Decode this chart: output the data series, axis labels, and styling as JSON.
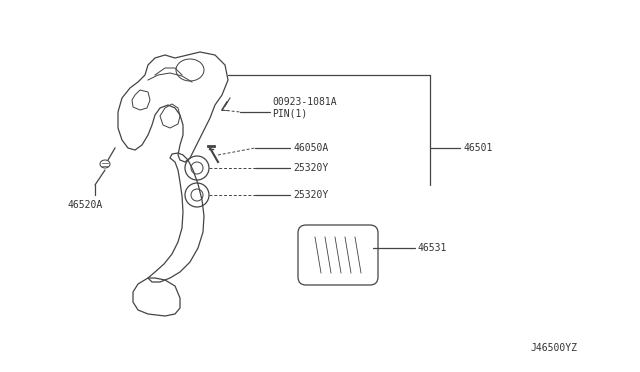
{
  "background_color": "#ffffff",
  "line_color": "#444444",
  "text_color": "#333333",
  "labels": {
    "46501": "46501",
    "00923_1081A": "00923-1081A\nPIN(1)",
    "46050A": "46050A",
    "25320Y_1": "25320Y",
    "25320Y_2": "25320Y",
    "46520A": "46520A",
    "46531": "46531",
    "J46500YZ": "J46500YZ"
  },
  "font_size": 7,
  "line_width": 0.9
}
